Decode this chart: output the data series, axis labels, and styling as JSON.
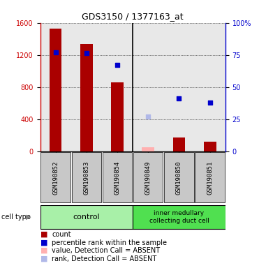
{
  "title": "GDS3150 / 1377163_at",
  "samples": [
    "GSM190852",
    "GSM190853",
    "GSM190854",
    "GSM190849",
    "GSM190850",
    "GSM190851"
  ],
  "group_control": {
    "label": "control",
    "count": 3,
    "color": "#a8f0a8"
  },
  "group_inner": {
    "label": "inner medullary\ncollecting duct cell",
    "count": 3,
    "color": "#50e050"
  },
  "bar_values": [
    1530,
    1340,
    860,
    null,
    170,
    120
  ],
  "bar_absent_values": [
    null,
    null,
    null,
    50,
    null,
    null
  ],
  "bar_color_present": "#aa0000",
  "bar_color_absent": "#ffb0b0",
  "dot_values_left": [
    1230,
    1220,
    1080,
    null,
    660,
    610
  ],
  "dot_absent_values_left": [
    null,
    null,
    null,
    430,
    null,
    null
  ],
  "dot_color_present": "#0000cc",
  "dot_color_absent": "#b0b8e8",
  "ylim_left": [
    0,
    1600
  ],
  "ylim_right": [
    0,
    100
  ],
  "yticks_left": [
    0,
    400,
    800,
    1200,
    1600
  ],
  "yticks_right": [
    0,
    25,
    50,
    75,
    100
  ],
  "ytick_labels_right": [
    "0",
    "25",
    "50",
    "75",
    "100%"
  ],
  "left_axis_color": "#cc0000",
  "right_axis_color": "#0000cc",
  "plot_bg_color": "#e8e8e8",
  "sample_box_color": "#c8c8c8",
  "fig_bg_color": "#ffffff",
  "legend_items": [
    {
      "label": "count",
      "color": "#aa0000"
    },
    {
      "label": "percentile rank within the sample",
      "color": "#0000cc"
    },
    {
      "label": "value, Detection Call = ABSENT",
      "color": "#ffb0b0"
    },
    {
      "label": "rank, Detection Call = ABSENT",
      "color": "#b0b8e8"
    }
  ]
}
